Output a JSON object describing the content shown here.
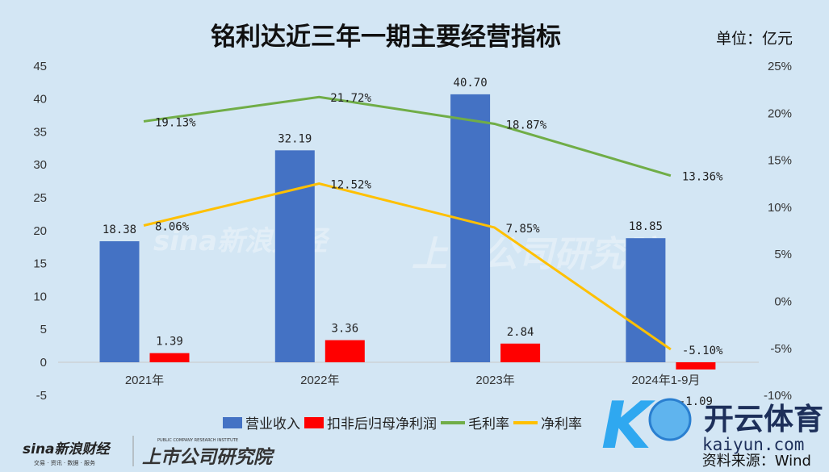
{
  "chart_data": {
    "type": "bar+line",
    "title": "铭利达近三年一期主要经营指标",
    "unit_label": "单位：亿元",
    "source": "资料来源：Wind",
    "categories": [
      "2021年",
      "2022年",
      "2023年",
      "2024年1-9月"
    ],
    "bar_series": [
      {
        "name": "营业收入",
        "color": "#4472c4",
        "values": [
          18.38,
          32.19,
          40.7,
          18.85
        ],
        "labels": [
          "18.38",
          "32.19",
          "40.70",
          "18.85"
        ]
      },
      {
        "name": "扣非后归母净利润",
        "color": "#ff0000",
        "values": [
          1.39,
          3.36,
          2.84,
          -1.09
        ],
        "labels": [
          "1.39",
          "3.36",
          "2.84",
          "-1.09"
        ]
      }
    ],
    "line_series": [
      {
        "name": "毛利率",
        "color": "#70ad47",
        "values": [
          19.13,
          21.72,
          18.87,
          13.36
        ],
        "labels": [
          "19.13%",
          "21.72%",
          "18.87%",
          "13.36%"
        ]
      },
      {
        "name": "净利率",
        "color": "#ffc000",
        "values": [
          8.06,
          12.52,
          7.85,
          -5.1
        ],
        "labels": [
          "8.06%",
          "12.52%",
          "7.85%",
          "-5.10%"
        ]
      }
    ],
    "y_left": {
      "min": -5,
      "max": 45,
      "ticks": [
        "-5",
        "0",
        "5",
        "10",
        "15",
        "20",
        "25",
        "30",
        "35",
        "40",
        "45"
      ]
    },
    "y_right": {
      "min": -10,
      "max": 25,
      "ticks": [
        "-10%",
        "-5%",
        "0%",
        "5%",
        "10%",
        "15%",
        "20%",
        "25%"
      ]
    },
    "legend_position": "bottom"
  },
  "logos": {
    "sina": "sina新浪财经",
    "sina_sub": "交易 · 资讯 · 数据 · 服务",
    "institute": "上市公司研究院",
    "institute_en": "PUBLIC COMPANY RESEARCH INSTITUTE",
    "kaiyun": "开云体育",
    "kaiyun_url": "kaiyun.com"
  }
}
